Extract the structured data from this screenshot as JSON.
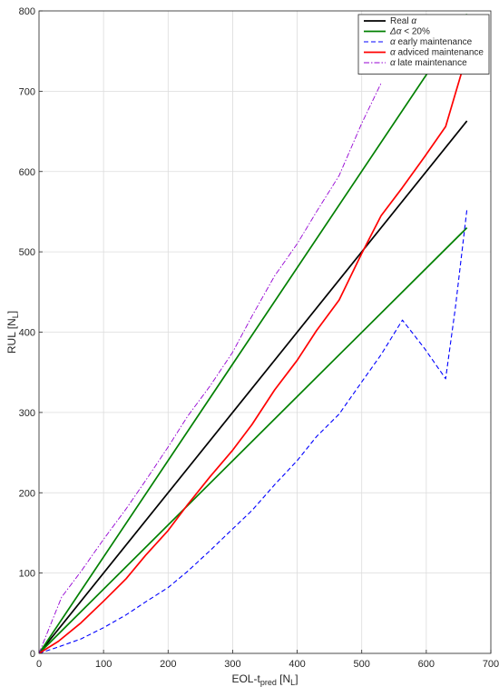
{
  "chart_data": {
    "type": "line",
    "xlabel": {
      "main": "EOL-t",
      "sub": "pred",
      "unit_main": "N",
      "unit_sub": "L"
    },
    "ylabel": {
      "main": "RUL",
      "unit_main": "N",
      "unit_sub": "L"
    },
    "xlim": [
      0,
      700
    ],
    "ylim": [
      0,
      800
    ],
    "xticks": [
      0,
      100,
      200,
      300,
      400,
      500,
      600,
      700
    ],
    "yticks": [
      0,
      100,
      200,
      300,
      400,
      500,
      600,
      700,
      800
    ],
    "grid": true,
    "legend_position": "top-right",
    "series": [
      {
        "name": "Real α",
        "legend_parts": [
          "Real ",
          "α"
        ],
        "color": "#000000",
        "dash": "solid",
        "x": [
          0,
          663
        ],
        "y": [
          0,
          663
        ]
      },
      {
        "name": "Δα < 20%",
        "legend_parts": [
          "Δα",
          "  <  20%"
        ],
        "color": "#008000",
        "dash": "solid",
        "x": [
          0,
          663
        ],
        "y": [
          0,
          796
        ],
        "extra_lines": [
          {
            "x": [
              0,
              663
            ],
            "y": [
              0,
              530
            ]
          }
        ]
      },
      {
        "name": "α early maintenance",
        "legend_parts": [
          "α",
          "  early  maintenance"
        ],
        "color": "#0000ff",
        "dash": "dashed",
        "x": [
          0,
          30,
          65,
          100,
          135,
          165,
          200,
          230,
          265,
          300,
          330,
          365,
          400,
          430,
          465,
          500,
          530,
          563,
          597,
          630,
          645,
          663
        ],
        "y": [
          0,
          8,
          18,
          32,
          48,
          64,
          82,
          102,
          128,
          155,
          178,
          210,
          240,
          270,
          298,
          338,
          372,
          415,
          380,
          342,
          430,
          553
        ]
      },
      {
        "name": "α adviced maintenance",
        "legend_parts": [
          "α",
          "  adviced  maintenance"
        ],
        "color": "#ff0000",
        "dash": "solid",
        "x": [
          0,
          30,
          65,
          100,
          135,
          165,
          200,
          230,
          265,
          300,
          330,
          365,
          400,
          430,
          465,
          500,
          530,
          563,
          597,
          630,
          663
        ],
        "y": [
          0,
          15,
          38,
          65,
          93,
          122,
          153,
          185,
          220,
          253,
          285,
          328,
          365,
          402,
          440,
          498,
          545,
          580,
          618,
          656,
          746
        ]
      },
      {
        "name": "α late maintenance",
        "legend_parts": [
          "α",
          "  late  maintenance"
        ],
        "color": "#9400d3",
        "dash": "dashdot",
        "x": [
          0,
          35,
          65,
          100,
          135,
          165,
          200,
          230,
          265,
          300,
          330,
          365,
          400,
          430,
          465,
          500,
          530
        ],
        "y": [
          0,
          70,
          102,
          142,
          180,
          215,
          257,
          295,
          333,
          375,
          420,
          470,
          510,
          550,
          595,
          660,
          710
        ]
      }
    ]
  }
}
